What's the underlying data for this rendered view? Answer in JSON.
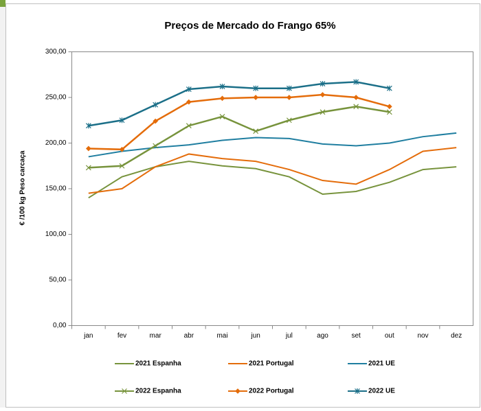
{
  "chart_data": {
    "type": "line",
    "title": "Preços de Mercado do Frango 65%",
    "y_label": "€ /100 kg Peso carcaça",
    "categories": [
      "jan",
      "fev",
      "mar",
      "abr",
      "mai",
      "jun",
      "jul",
      "ago",
      "set",
      "out",
      "nov",
      "dez"
    ],
    "series": [
      {
        "name": "2021 Espanha",
        "color": "#77933c",
        "marker": "none",
        "values": [
          140,
          163,
          174,
          180,
          175,
          172,
          163,
          144,
          147,
          157,
          171,
          174
        ]
      },
      {
        "name": "2021 Portugal",
        "color": "#e46c0a",
        "marker": "none",
        "values": [
          145,
          150,
          174,
          188,
          183,
          180,
          171,
          159,
          155,
          171,
          191,
          195
        ]
      },
      {
        "name": "2021 UE",
        "color": "#1f7ea0",
        "marker": "none",
        "values": [
          185,
          191,
          195,
          198,
          203,
          206,
          205,
          199,
          197,
          200,
          207,
          211
        ]
      },
      {
        "name": "2022 Espanha",
        "color": "#77933c",
        "marker": "x",
        "values": [
          173,
          175,
          197,
          219,
          229,
          213,
          225,
          234,
          240,
          234,
          null,
          null
        ]
      },
      {
        "name": "2022 Portugal",
        "color": "#e46c0a",
        "marker": "diamond",
        "values": [
          194,
          193,
          224,
          245,
          249,
          250,
          250,
          253,
          250,
          240,
          null,
          null
        ]
      },
      {
        "name": "2022 UE",
        "color": "#1b6f88",
        "marker": "star",
        "values": [
          219,
          225,
          242,
          259,
          262,
          260,
          260,
          265,
          267,
          260,
          null,
          null
        ]
      }
    ],
    "ylim": [
      0,
      300
    ],
    "yticks": [
      {
        "value": 0,
        "label": "0,00"
      },
      {
        "value": 50,
        "label": "50,00"
      },
      {
        "value": 100,
        "label": "100,00"
      },
      {
        "value": 150,
        "label": "150,00"
      },
      {
        "value": 200,
        "label": "200,00"
      },
      {
        "value": 250,
        "label": "250,00"
      },
      {
        "value": 300,
        "label": "300,00"
      }
    ],
    "grid": false,
    "legend": "bottom"
  }
}
